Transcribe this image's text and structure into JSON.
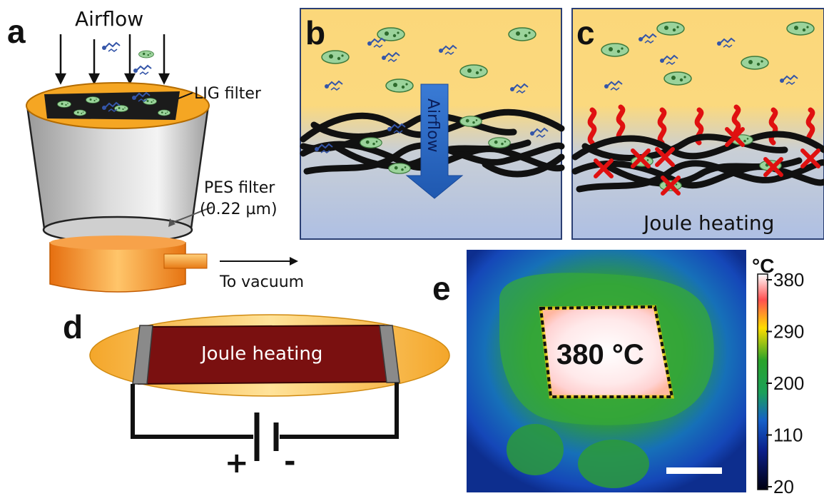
{
  "panels": {
    "a": {
      "letter": "a",
      "airflow_label": "Airflow",
      "lig_label": "LIG filter",
      "pes_label_line1": "PES filter",
      "pes_label_line2": "(0.22 µm)",
      "vacuum_label": "To vacuum"
    },
    "b": {
      "letter": "b",
      "airflow_label": "Airflow"
    },
    "c": {
      "letter": "c",
      "joule_label": "Joule heating"
    },
    "d": {
      "letter": "d",
      "joule_label": "Joule heating",
      "plus": "+",
      "minus": "-"
    },
    "e": {
      "letter": "e",
      "temp_label": "380 °C",
      "colorbar_unit": "°C",
      "colorbar_ticks": [
        "380",
        "290",
        "200",
        "110",
        "20"
      ]
    }
  },
  "colors": {
    "pathogen_green": "#9bd39b",
    "fiber_black": "#111111",
    "heat_red": "#e01010",
    "orange": "#f08a1c",
    "dark_red_heater": "#7a1010",
    "sky_yellow": "#fbd77a",
    "base_blue": "#b7c7e6"
  }
}
